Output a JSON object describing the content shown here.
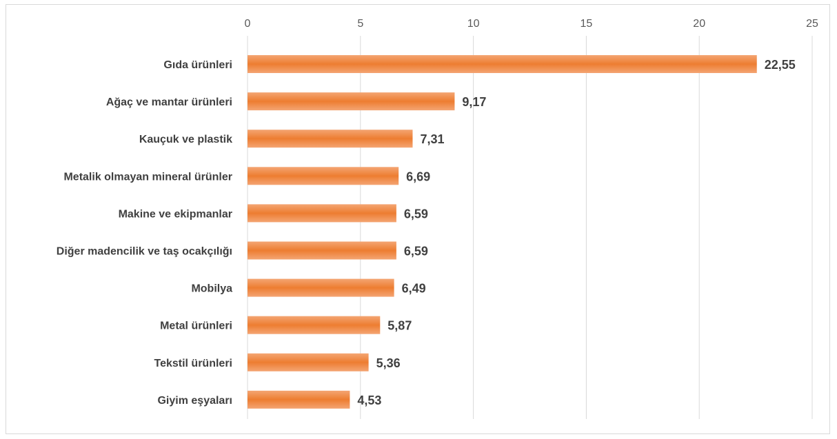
{
  "chart_data": {
    "type": "bar",
    "orientation": "horizontal",
    "title": "",
    "xlabel": "",
    "ylabel": "",
    "categories": [
      "Gıda ürünleri",
      "Ağaç ve mantar ürünleri",
      "Kauçuk ve plastik",
      "Metalik olmayan mineral ürünler",
      "Makine ve ekipmanlar",
      "Diğer madencilik ve taş ocakçılığı",
      "Mobilya",
      "Metal ürünleri",
      "Tekstil ürünleri",
      "Giyim eşyaları"
    ],
    "values": [
      22.55,
      9.17,
      7.31,
      6.69,
      6.59,
      6.59,
      6.49,
      5.87,
      5.36,
      4.53
    ],
    "value_labels": [
      "22,55",
      "9,17",
      "7,31",
      "6,69",
      "6,59",
      "6,59",
      "6,49",
      "5,87",
      "5,36",
      "4,53"
    ],
    "xlim": [
      0,
      25
    ],
    "x_ticks": [
      0,
      5,
      10,
      15,
      20,
      25
    ],
    "x_tick_labels": [
      "0",
      "5",
      "10",
      "15",
      "20",
      "25"
    ],
    "axis_position": "top",
    "grid": true,
    "legend": "none",
    "bar_color": "#ED7D31",
    "bar_gradient_light": "#F4A573",
    "grid_color": "#D9D9D9"
  }
}
